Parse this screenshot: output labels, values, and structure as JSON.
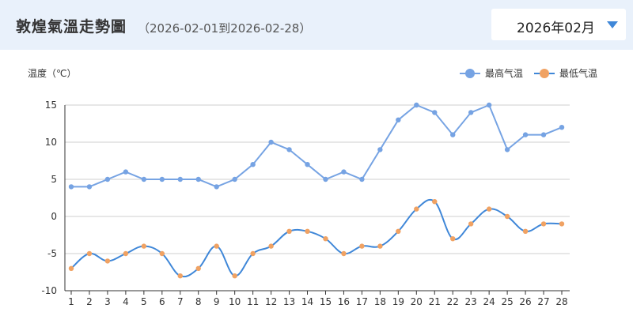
{
  "header": {
    "title": "敦煌氣溫走勢圖",
    "range": "（2026-02-01到2026-02-28）",
    "month_select": {
      "value": "2026年02月"
    }
  },
  "colors": {
    "header_bg": "#e9f1fb",
    "high_line": "#76a3e3",
    "high_point": "#76a3e3",
    "low_line": "#3f87d8",
    "low_point": "#f0a263",
    "grid": "#cfcfcf",
    "caret": "#3f87d8"
  },
  "chart_data": {
    "type": "line",
    "ylabel": "温度（℃）",
    "xlabel": "",
    "ylim": [
      -10,
      15
    ],
    "yticks": [
      15,
      10,
      5,
      0,
      -5,
      -10
    ],
    "grid": "horizontal",
    "legend_position": "top-right",
    "x": [
      1,
      2,
      3,
      4,
      5,
      6,
      7,
      8,
      9,
      10,
      11,
      12,
      13,
      14,
      15,
      16,
      17,
      18,
      19,
      20,
      21,
      22,
      23,
      24,
      25,
      26,
      27,
      28
    ],
    "series": [
      {
        "name": "最高气温",
        "smooth": false,
        "values": [
          4,
          4,
          5,
          6,
          5,
          5,
          5,
          5,
          4,
          5,
          7,
          10,
          9,
          7,
          5,
          6,
          5,
          9,
          13,
          15,
          14,
          11,
          14,
          15,
          9,
          11,
          11,
          12
        ]
      },
      {
        "name": "最低气温",
        "smooth": true,
        "values": [
          -7,
          -5,
          -6,
          -5,
          -4,
          -5,
          -8,
          -7,
          -4,
          -8,
          -5,
          -4,
          -2,
          -2,
          -3,
          -5,
          -4,
          -4,
          -2,
          1,
          2,
          -3,
          -1,
          1,
          0,
          -2,
          -1,
          -1
        ]
      }
    ]
  }
}
